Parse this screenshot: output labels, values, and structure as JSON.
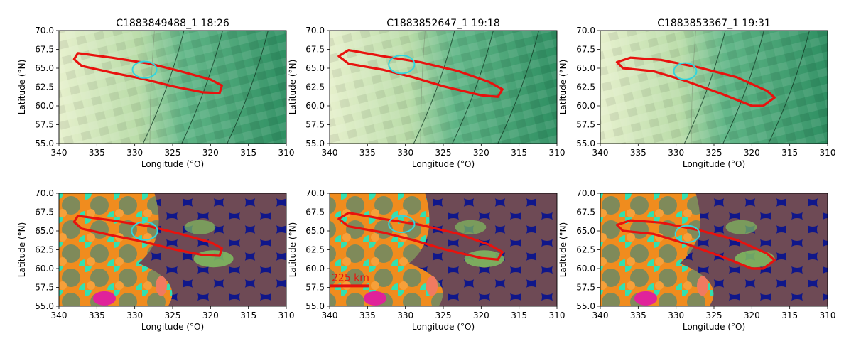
{
  "colors": {
    "outline": "#e8120e",
    "circle": "#33d4dd",
    "scale_bar": "#e8120e"
  },
  "chart_data": [
    {
      "type": "heatmap",
      "title": "C1883849488_1  18:26",
      "xlabel": "Longitude (°O)",
      "ylabel": "Latitude (°N)",
      "xlim": [
        340,
        310
      ],
      "ylim": [
        55.0,
        70.0
      ],
      "xticks": [
        "340",
        "335",
        "330",
        "325",
        "320",
        "315",
        "310"
      ],
      "yticks": [
        "55.0",
        "57.5",
        "60.0",
        "62.5",
        "65.0",
        "67.5",
        "70.0"
      ],
      "outline": [
        [
          337.5,
          67.0
        ],
        [
          333,
          66.4
        ],
        [
          328,
          65.6
        ],
        [
          324,
          64.6
        ],
        [
          320,
          63.5
        ],
        [
          318.5,
          62.7
        ],
        [
          318.8,
          61.7
        ],
        [
          321,
          61.8
        ],
        [
          325,
          62.6
        ],
        [
          329,
          63.6
        ],
        [
          333,
          64.4
        ],
        [
          337,
          65.3
        ],
        [
          338,
          66.2
        ],
        [
          337.5,
          67.0
        ]
      ],
      "circle": {
        "lon": 328.7,
        "lat": 64.8,
        "rlon": 1.6,
        "rlat": 1.1
      }
    },
    {
      "type": "heatmap",
      "title": "C1883852647_1  19:18",
      "xlabel": "Longitude (°O)",
      "ylabel": "Latitude (°N)",
      "xlim": [
        340,
        310
      ],
      "ylim": [
        55.0,
        70.0
      ],
      "xticks": [
        "340",
        "335",
        "330",
        "325",
        "320",
        "315",
        "310"
      ],
      "yticks": [
        "55.0",
        "57.5",
        "60.0",
        "62.5",
        "65.0",
        "67.5",
        "70.0"
      ],
      "outline": [
        [
          337.5,
          67.4
        ],
        [
          333,
          66.6
        ],
        [
          328,
          65.8
        ],
        [
          323,
          64.6
        ],
        [
          319,
          63.2
        ],
        [
          317.2,
          62.2
        ],
        [
          317.8,
          61.2
        ],
        [
          320,
          61.4
        ],
        [
          325,
          62.6
        ],
        [
          329,
          63.8
        ],
        [
          333,
          64.8
        ],
        [
          337.5,
          65.6
        ],
        [
          338.8,
          66.6
        ],
        [
          337.5,
          67.4
        ]
      ],
      "circle": {
        "lon": 330.5,
        "lat": 65.5,
        "rlon": 1.7,
        "rlat": 1.2
      }
    },
    {
      "type": "heatmap",
      "title": "C1883853367_1  19:31",
      "xlabel": "Longitude (°O)",
      "ylabel": "Latitude (°N)",
      "xlim": [
        340,
        310
      ],
      "ylim": [
        55.0,
        70.0
      ],
      "xticks": [
        "340",
        "335",
        "330",
        "325",
        "320",
        "315",
        "310"
      ],
      "yticks": [
        "55.0",
        "57.5",
        "60.0",
        "62.5",
        "65.0",
        "67.5",
        "70.0"
      ],
      "outline": [
        [
          336,
          66.4
        ],
        [
          332,
          66.1
        ],
        [
          327,
          65.1
        ],
        [
          322,
          63.8
        ],
        [
          318,
          62.0
        ],
        [
          317,
          61.1
        ],
        [
          318.5,
          60.0
        ],
        [
          320,
          60.0
        ],
        [
          324,
          61.6
        ],
        [
          329,
          63.4
        ],
        [
          333,
          64.6
        ],
        [
          337,
          65.0
        ],
        [
          337.8,
          65.8
        ],
        [
          336,
          66.4
        ]
      ],
      "circle": {
        "lon": 328.8,
        "lat": 64.6,
        "rlon": 1.5,
        "rlat": 1.1
      }
    },
    {
      "type": "heatmap",
      "title": "",
      "xlabel": "Longitude (°O)",
      "ylabel": "Latitude (°N)",
      "xlim": [
        340,
        310
      ],
      "ylim": [
        55.0,
        70.0
      ],
      "xticks": [
        "340",
        "335",
        "330",
        "325",
        "320",
        "315",
        "310"
      ],
      "yticks": [
        "55.0",
        "57.5",
        "60.0",
        "62.5",
        "65.0",
        "67.5",
        "70.0"
      ],
      "outline": [
        [
          337.5,
          67.0
        ],
        [
          333,
          66.4
        ],
        [
          328,
          65.6
        ],
        [
          324,
          64.6
        ],
        [
          320,
          63.5
        ],
        [
          318.5,
          62.7
        ],
        [
          318.8,
          61.7
        ],
        [
          321,
          61.8
        ],
        [
          325,
          62.6
        ],
        [
          329,
          63.6
        ],
        [
          333,
          64.4
        ],
        [
          337,
          65.3
        ],
        [
          338,
          66.2
        ],
        [
          337.5,
          67.0
        ]
      ],
      "circle": {
        "lon": 328.7,
        "lat": 65.0,
        "rlon": 1.7,
        "rlat": 1.2
      }
    },
    {
      "type": "heatmap",
      "title": "",
      "xlabel": "Longitude (°O)",
      "ylabel": "Latitude (°N)",
      "xlim": [
        340,
        310
      ],
      "ylim": [
        55.0,
        70.0
      ],
      "xticks": [
        "340",
        "335",
        "330",
        "325",
        "320",
        "315",
        "310"
      ],
      "yticks": [
        "55.0",
        "57.5",
        "60.0",
        "62.5",
        "65.0",
        "67.5",
        "70.0"
      ],
      "outline": [
        [
          337.5,
          67.4
        ],
        [
          333,
          66.6
        ],
        [
          328,
          65.8
        ],
        [
          323,
          64.6
        ],
        [
          319,
          63.2
        ],
        [
          317.2,
          62.2
        ],
        [
          317.8,
          61.2
        ],
        [
          320,
          61.4
        ],
        [
          325,
          62.6
        ],
        [
          329,
          63.8
        ],
        [
          333,
          64.8
        ],
        [
          337.5,
          65.6
        ],
        [
          338.8,
          66.6
        ],
        [
          337.5,
          67.4
        ]
      ],
      "circle": {
        "lon": 330.5,
        "lat": 65.9,
        "rlon": 1.7,
        "rlat": 1.1
      },
      "scale_bar": {
        "label": "225 km",
        "lon_start": 340,
        "lon_end": 334.8,
        "lat": 57.7
      }
    },
    {
      "type": "heatmap",
      "title": "",
      "xlabel": "Longitude (°O)",
      "ylabel": "Latitude (°N)",
      "xlim": [
        340,
        310
      ],
      "ylim": [
        55.0,
        70.0
      ],
      "xticks": [
        "340",
        "335",
        "330",
        "325",
        "320",
        "315",
        "310"
      ],
      "yticks": [
        "55.0",
        "57.5",
        "60.0",
        "62.5",
        "65.0",
        "67.5",
        "70.0"
      ],
      "outline": [
        [
          336,
          66.4
        ],
        [
          332,
          66.1
        ],
        [
          327,
          65.1
        ],
        [
          322,
          63.8
        ],
        [
          318,
          62.0
        ],
        [
          317,
          61.1
        ],
        [
          318.5,
          60.0
        ],
        [
          320,
          60.0
        ],
        [
          324,
          61.6
        ],
        [
          329,
          63.4
        ],
        [
          333,
          64.6
        ],
        [
          337,
          65.0
        ],
        [
          337.8,
          65.8
        ],
        [
          336,
          66.4
        ]
      ],
      "circle": {
        "lon": 328.5,
        "lat": 64.6,
        "rlon": 1.6,
        "rlat": 1.1
      }
    }
  ]
}
